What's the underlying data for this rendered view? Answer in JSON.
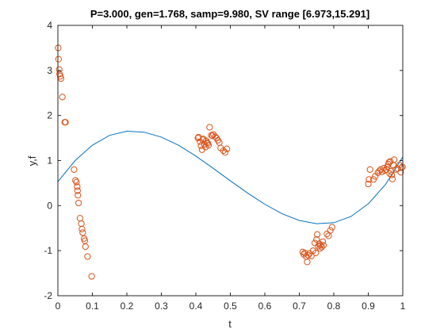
{
  "chart_data": {
    "type": "scatter",
    "title": "P=3.000, gen=1.768, samp=9.980, SV range [6.973,15.291]",
    "xlabel": "t",
    "ylabel": "y,f",
    "xlim": [
      0,
      1
    ],
    "ylim": [
      -2,
      4
    ],
    "xticks": [
      "0",
      "0.1",
      "0.2",
      "0.3",
      "0.4",
      "0.5",
      "0.6",
      "0.7",
      "0.8",
      "0.9",
      "1"
    ],
    "yticks": [
      "-2",
      "-1",
      "0",
      "1",
      "2",
      "3",
      "4"
    ],
    "grid": false,
    "legend": "none",
    "series": [
      {
        "kind": "line",
        "color": "#0072BD",
        "x": [
          0,
          0.05,
          0.1,
          0.15,
          0.2,
          0.25,
          0.3,
          0.35,
          0.4,
          0.45,
          0.5,
          0.55,
          0.6,
          0.65,
          0.7,
          0.75,
          0.8,
          0.85,
          0.9,
          0.95,
          1.0
        ],
        "y": [
          0.53,
          1.0,
          1.34,
          1.56,
          1.65,
          1.63,
          1.52,
          1.34,
          1.1,
          0.83,
          0.55,
          0.28,
          0.03,
          -0.18,
          -0.33,
          -0.4,
          -0.38,
          -0.24,
          0.04,
          0.47,
          1.08
        ]
      },
      {
        "kind": "scatter",
        "color": "#D95319",
        "x": [
          0.001,
          0.002,
          0.004,
          0.005,
          0.007,
          0.009,
          0.013,
          0.02,
          0.022,
          0.047,
          0.051,
          0.054,
          0.056,
          0.057,
          0.058,
          0.06,
          0.064,
          0.068,
          0.07,
          0.072,
          0.076,
          0.078,
          0.08,
          0.086,
          0.098,
          0.406,
          0.408,
          0.412,
          0.415,
          0.418,
          0.42,
          0.422,
          0.425,
          0.428,
          0.43,
          0.432,
          0.435,
          0.437,
          0.44,
          0.445,
          0.448,
          0.451,
          0.456,
          0.46,
          0.464,
          0.468,
          0.472,
          0.48,
          0.485,
          0.49,
          0.71,
          0.713,
          0.716,
          0.72,
          0.723,
          0.726,
          0.73,
          0.735,
          0.74,
          0.745,
          0.748,
          0.75,
          0.752,
          0.755,
          0.758,
          0.76,
          0.762,
          0.765,
          0.768,
          0.77,
          0.78,
          0.785,
          0.79,
          0.795,
          0.9,
          0.902,
          0.905,
          0.915,
          0.92,
          0.928,
          0.932,
          0.936,
          0.94,
          0.945,
          0.948,
          0.952,
          0.955,
          0.958,
          0.96,
          0.962,
          0.964,
          0.966,
          0.968,
          0.97,
          0.972,
          0.975,
          0.98,
          0.985,
          0.99,
          0.994,
          0.996,
          0.999
        ],
        "y": [
          3.5,
          3.25,
          3.02,
          2.92,
          2.87,
          2.82,
          2.41,
          1.85,
          1.85,
          0.8,
          0.56,
          0.52,
          0.42,
          0.33,
          0.23,
          0.06,
          -0.28,
          -0.4,
          -0.52,
          -0.6,
          -0.73,
          -0.78,
          -0.91,
          -1.13,
          -1.57,
          1.5,
          1.52,
          1.42,
          1.33,
          1.24,
          1.46,
          1.48,
          1.36,
          1.3,
          1.44,
          1.4,
          1.38,
          1.34,
          1.74,
          1.56,
          1.55,
          1.58,
          1.53,
          1.5,
          1.45,
          1.4,
          1.28,
          1.22,
          1.18,
          1.26,
          -1.03,
          -1.08,
          -1.05,
          -1.13,
          -1.25,
          -1.1,
          -1.06,
          -1.12,
          -1.0,
          -0.83,
          -1.05,
          -0.75,
          -0.64,
          -0.9,
          -0.85,
          -0.95,
          -0.88,
          -0.92,
          -0.8,
          -0.88,
          -0.63,
          -0.67,
          -0.55,
          -0.48,
          0.48,
          0.58,
          0.8,
          0.58,
          0.65,
          0.73,
          0.77,
          0.8,
          0.75,
          0.83,
          0.78,
          0.8,
          0.86,
          0.92,
          0.96,
          0.71,
          0.98,
          0.76,
          0.68,
          0.59,
          0.9,
          1.02,
          0.8,
          0.82,
          0.9,
          0.74,
          0.84,
          0.86
        ]
      }
    ]
  }
}
